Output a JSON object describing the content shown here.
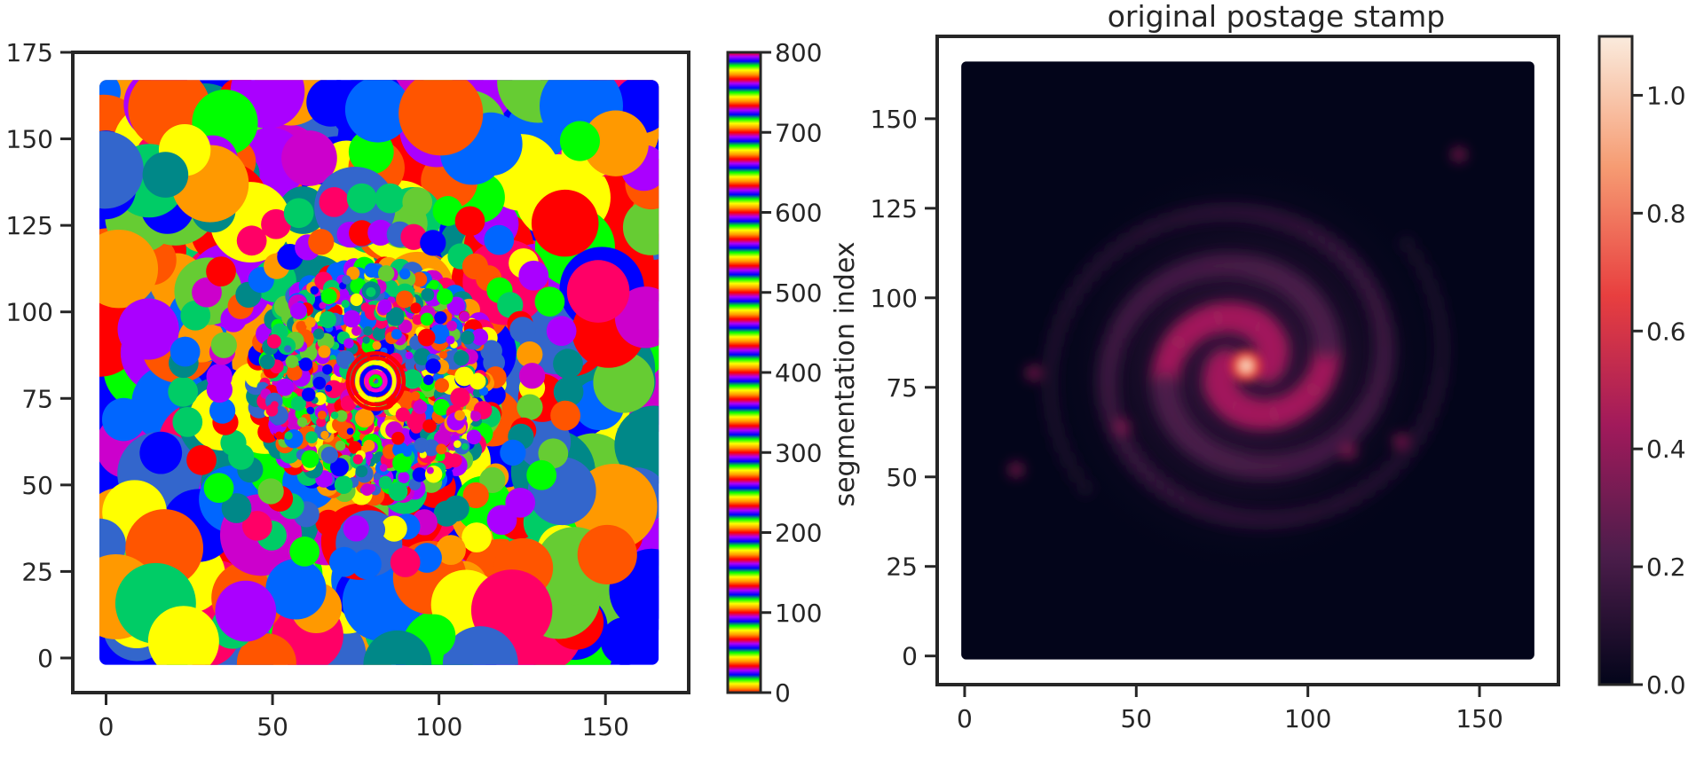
{
  "chart_data": [
    {
      "type": "heatmap",
      "title": "",
      "xlabel": "",
      "ylabel": "",
      "xlim": [
        -10,
        175
      ],
      "ylim": [
        -10,
        175
      ],
      "image_extent": [
        -2,
        166,
        -2,
        167
      ],
      "xticks": [
        0,
        50,
        100,
        150
      ],
      "yticks": [
        0,
        25,
        50,
        75,
        100,
        125,
        150,
        175
      ],
      "content": "segmentation map of patches colored by segmentation index",
      "colormap": "prism",
      "colorbar": {
        "label": "segmentation index",
        "range": [
          0,
          800
        ],
        "ticks": [
          0,
          100,
          200,
          300,
          400,
          500,
          600,
          700,
          800
        ]
      }
    },
    {
      "type": "heatmap",
      "title": "original postage stamp",
      "xlabel": "",
      "ylabel": "",
      "xlim": [
        -8,
        173
      ],
      "ylim": [
        -8,
        173
      ],
      "image_extent": [
        -1,
        166,
        -1,
        166
      ],
      "xticks": [
        0,
        50,
        100,
        150
      ],
      "yticks": [
        0,
        25,
        50,
        75,
        100,
        125,
        150
      ],
      "content": "face-on spiral galaxy with bright core near (82, 81)",
      "core": [
        82,
        81
      ],
      "colormap": "rocket",
      "colorbar": {
        "label": "",
        "range": [
          0,
          1.1
        ],
        "ticks": [
          0.0,
          0.2,
          0.4,
          0.6,
          0.8,
          1.0
        ],
        "tick_labels": [
          "0.0",
          "0.2",
          "0.4",
          "0.6",
          "0.8",
          "1.0"
        ]
      }
    }
  ],
  "colors": {
    "axes": "#262626",
    "prism": [
      "#ff0000",
      "#ff9900",
      "#ffff00",
      "#00ff00",
      "#0000ff",
      "#aa00ff"
    ],
    "rocket": [
      "#03051a",
      "#4c1d4b",
      "#a11a5b",
      "#e83f3f",
      "#f69c73",
      "#faebdd"
    ]
  }
}
